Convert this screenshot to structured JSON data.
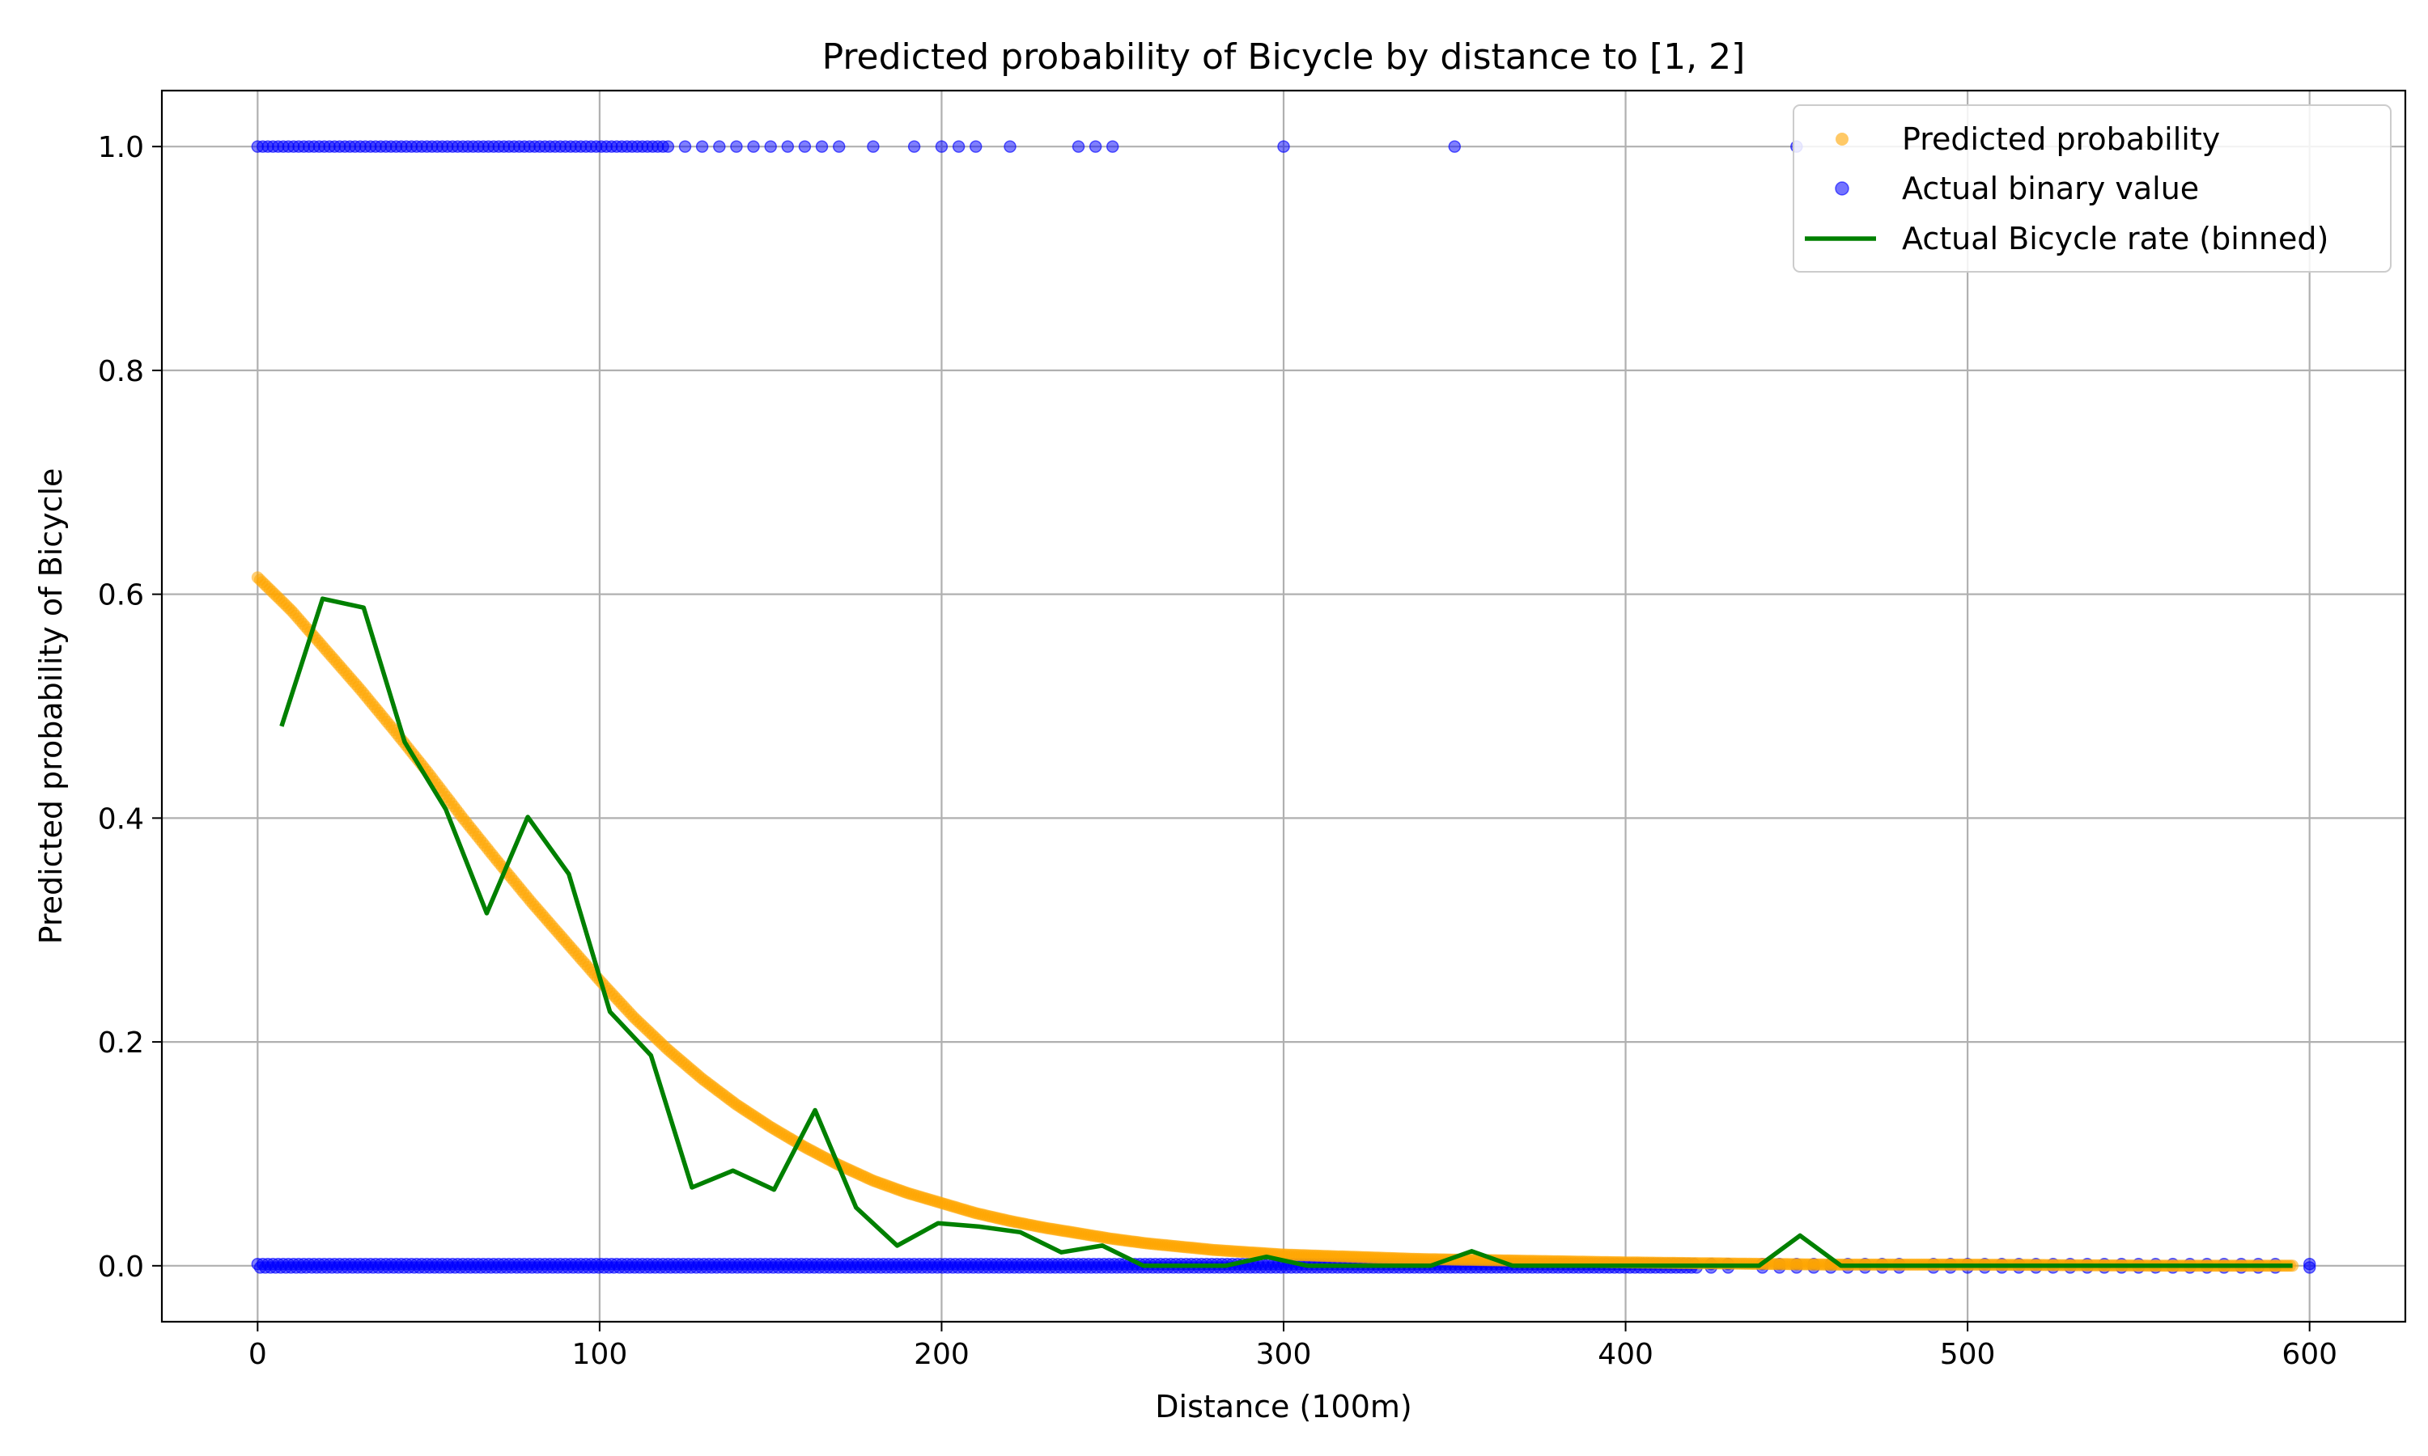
{
  "chart_data": {
    "type": "scatter",
    "title": "Predicted probability of Bicycle by distance to [1, 2]",
    "xlabel": "Distance (100m)",
    "ylabel": "Predicted probability of Bicycle",
    "xlim": [
      -28,
      628
    ],
    "ylim": [
      -0.05,
      1.05
    ],
    "xticks": [
      0,
      100,
      200,
      300,
      400,
      500,
      600
    ],
    "xtick_labels": [
      "0",
      "100",
      "200",
      "300",
      "400",
      "500",
      "600"
    ],
    "yticks": [
      0.0,
      0.2,
      0.4,
      0.6,
      0.8,
      1.0
    ],
    "ytick_labels": [
      "0.0",
      "0.2",
      "0.4",
      "0.6",
      "0.8",
      "1.0"
    ],
    "grid": true,
    "legend_position": "top-right",
    "colors": {
      "predicted": "#ffa500",
      "actual": "#0000ff",
      "binned": "#008000",
      "grid": "#b0b0b0"
    },
    "series": [
      {
        "name": "Predicted probability",
        "kind": "scatter-curve",
        "curve_points": [
          [
            0,
            0.615
          ],
          [
            10,
            0.585
          ],
          [
            20,
            0.55
          ],
          [
            30,
            0.515
          ],
          [
            40,
            0.478
          ],
          [
            50,
            0.44
          ],
          [
            60,
            0.4
          ],
          [
            70,
            0.362
          ],
          [
            80,
            0.325
          ],
          [
            90,
            0.29
          ],
          [
            100,
            0.255
          ],
          [
            110,
            0.222
          ],
          [
            120,
            0.193
          ],
          [
            130,
            0.167
          ],
          [
            140,
            0.144
          ],
          [
            150,
            0.124
          ],
          [
            160,
            0.106
          ],
          [
            170,
            0.09
          ],
          [
            180,
            0.076
          ],
          [
            190,
            0.065
          ],
          [
            200,
            0.056
          ],
          [
            210,
            0.047
          ],
          [
            220,
            0.04
          ],
          [
            230,
            0.034
          ],
          [
            240,
            0.029
          ],
          [
            250,
            0.024
          ],
          [
            260,
            0.02
          ],
          [
            270,
            0.017
          ],
          [
            280,
            0.014
          ],
          [
            290,
            0.012
          ],
          [
            300,
            0.01
          ],
          [
            320,
            0.008
          ],
          [
            340,
            0.006
          ],
          [
            360,
            0.005
          ],
          [
            380,
            0.004
          ],
          [
            400,
            0.003
          ],
          [
            430,
            0.002
          ],
          [
            460,
            0.001
          ],
          [
            500,
            0.001
          ],
          [
            560,
            0.0
          ],
          [
            600,
            0.0
          ]
        ],
        "x_range": [
          0,
          595
        ]
      },
      {
        "name": "Actual binary value",
        "kind": "binary-scatter",
        "ones_dense_range": [
          0,
          120
        ],
        "ones_sparse_x": [
          125,
          130,
          135,
          140,
          145,
          150,
          155,
          160,
          165,
          170,
          180,
          192,
          200,
          205,
          210,
          220,
          240,
          245,
          250,
          300,
          350,
          450
        ],
        "zeros_dense_range": [
          0,
          420
        ],
        "zeros_sparse_x": [
          425,
          430,
          440,
          445,
          450,
          455,
          460,
          465,
          470,
          475,
          480,
          490,
          495,
          500,
          505,
          510,
          515,
          520,
          525,
          530,
          535,
          540,
          545,
          550,
          555,
          560,
          565,
          570,
          575,
          580,
          585,
          590,
          600
        ]
      },
      {
        "name": "Actual Bicycle rate (binned)",
        "kind": "line",
        "x": [
          7,
          19,
          31,
          43,
          55,
          67,
          79,
          91,
          103,
          115,
          127,
          139,
          151,
          163,
          175,
          187,
          199,
          211,
          223,
          235,
          247,
          259,
          271,
          283,
          295,
          307,
          319,
          331,
          343,
          355,
          367,
          379,
          391,
          403,
          415,
          427,
          439,
          451,
          463,
          475,
          487,
          499,
          511,
          523,
          535,
          547,
          559,
          571,
          583,
          595
        ],
        "y": [
          0.482,
          0.596,
          0.588,
          0.468,
          0.408,
          0.315,
          0.401,
          0.35,
          0.227,
          0.188,
          0.07,
          0.085,
          0.068,
          0.139,
          0.052,
          0.018,
          0.038,
          0.035,
          0.03,
          0.012,
          0.018,
          0.0,
          0.0,
          0.0,
          0.008,
          0.0,
          0.0,
          0.0,
          0.0,
          0.013,
          0.0,
          0.0,
          0.0,
          0.0,
          0.0,
          0.0,
          0.0,
          0.027,
          0.0,
          0.0,
          0.0,
          0.0,
          0.0,
          0.0,
          0.0,
          0.0,
          0.0,
          0.0,
          0.0,
          0.0
        ]
      }
    ]
  }
}
